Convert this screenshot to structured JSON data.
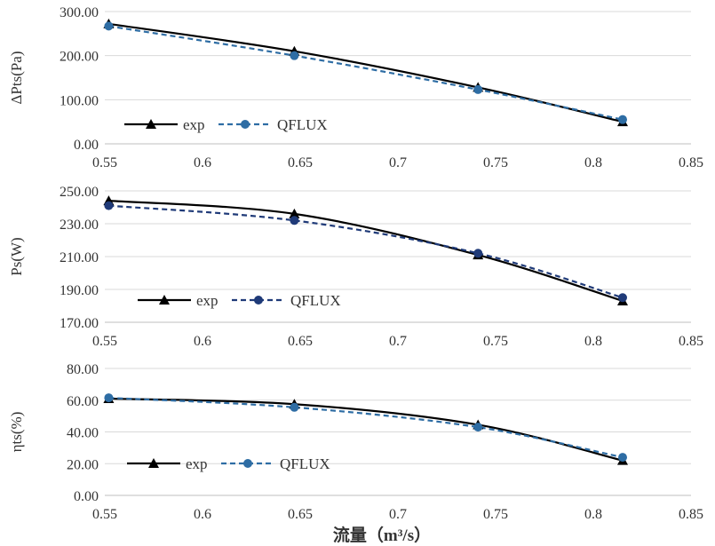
{
  "chart_data": [
    {
      "type": "line",
      "ylabel": "ΔPts(Pa)",
      "xlabel": "",
      "x": [
        0.552,
        0.647,
        0.741,
        0.815
      ],
      "xlim": [
        0.55,
        0.85
      ],
      "ylim": [
        0,
        300
      ],
      "x_ticks": [
        "0.55",
        "0.6",
        "0.65",
        "0.7",
        "0.75",
        "0.8",
        "0.85"
      ],
      "y_ticks": [
        "0.00",
        "100.00",
        "200.00",
        "300.00"
      ],
      "grid": "horizontal",
      "legend_position": "bottom-left",
      "series": [
        {
          "name": "exp",
          "values": [
            272,
            210,
            128,
            50
          ],
          "color": "#000000",
          "line": "solid",
          "marker": "triangle"
        },
        {
          "name": "QFLUX",
          "values": [
            267,
            200,
            123,
            55
          ],
          "color": "#2e6da4",
          "line": "dashed",
          "marker": "circle"
        }
      ]
    },
    {
      "type": "line",
      "ylabel": "Ps(W)",
      "xlabel": "",
      "x": [
        0.552,
        0.647,
        0.741,
        0.815
      ],
      "xlim": [
        0.55,
        0.85
      ],
      "ylim": [
        170,
        250
      ],
      "x_ticks": [
        "0.55",
        "0.6",
        "0.65",
        "0.7",
        "0.75",
        "0.8",
        "0.85"
      ],
      "y_ticks": [
        "170.00",
        "190.00",
        "210.00",
        "230.00",
        "250.00"
      ],
      "grid": "horizontal",
      "legend_position": "bottom-left",
      "series": [
        {
          "name": "exp",
          "values": [
            244,
            236,
            211,
            183
          ],
          "color": "#000000",
          "line": "solid",
          "marker": "triangle"
        },
        {
          "name": "QFLUX",
          "values": [
            241,
            232,
            212,
            185
          ],
          "color": "#1f3a78",
          "line": "dashed",
          "marker": "circle"
        }
      ]
    },
    {
      "type": "line",
      "ylabel": "ηts(%)",
      "xlabel": "流量（m³/s）",
      "x": [
        0.552,
        0.647,
        0.741,
        0.815
      ],
      "xlim": [
        0.55,
        0.85
      ],
      "ylim": [
        0,
        80
      ],
      "x_ticks": [
        "0.55",
        "0.6",
        "0.65",
        "0.7",
        "0.75",
        "0.8",
        "0.85"
      ],
      "y_ticks": [
        "0.00",
        "20.00",
        "40.00",
        "60.00",
        "80.00"
      ],
      "grid": "horizontal",
      "legend_position": "bottom-left",
      "series": [
        {
          "name": "exp",
          "values": [
            61,
            57.5,
            44.5,
            22
          ],
          "color": "#000000",
          "line": "solid",
          "marker": "triangle"
        },
        {
          "name": "QFLUX",
          "values": [
            61.5,
            55.5,
            43,
            24
          ],
          "color": "#2e6da4",
          "line": "dashed",
          "marker": "circle"
        }
      ]
    }
  ]
}
